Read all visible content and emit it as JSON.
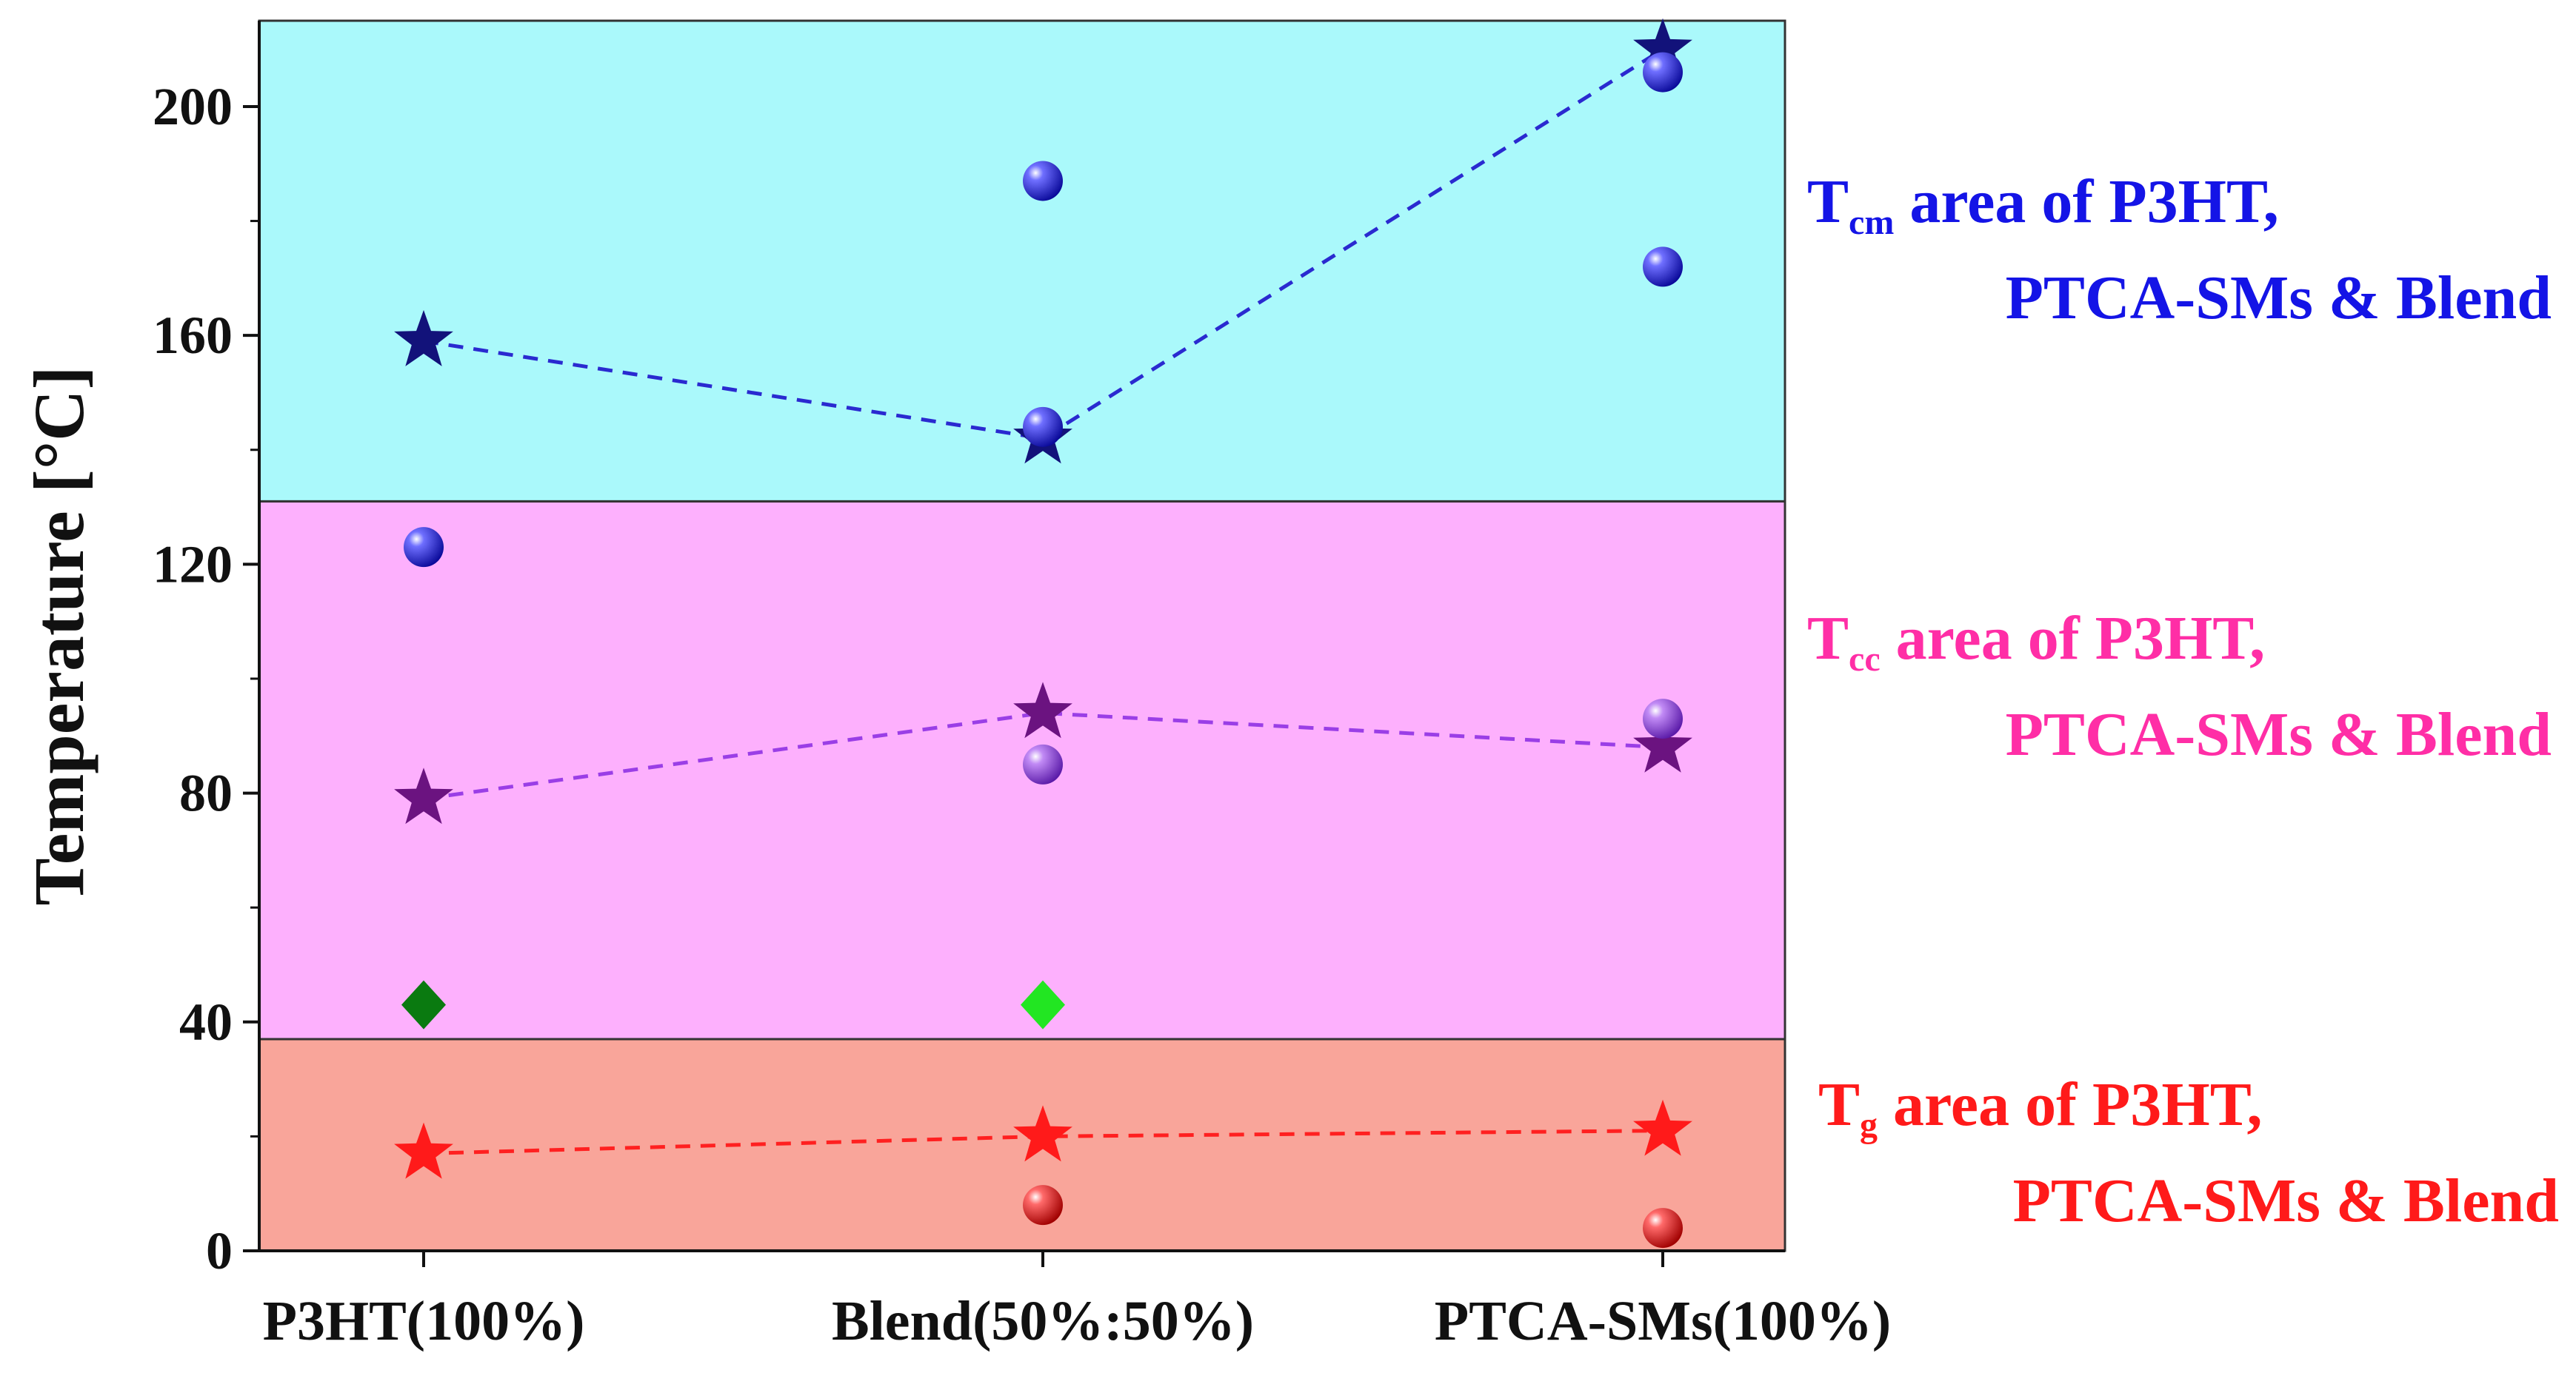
{
  "chart_data": {
    "type": "scatter",
    "title": "",
    "xlabel": "",
    "ylabel": "Temperature [°C]",
    "categories": [
      "P3HT(100%)",
      "Blend(50%:50%)",
      "PTCA-SMs(100%)"
    ],
    "ylim": [
      0,
      215
    ],
    "yticks": [
      0,
      40,
      80,
      120,
      160,
      200
    ],
    "regions": [
      {
        "name": "Tg",
        "from": 0,
        "to": 37,
        "color": "#f9a59a",
        "label_main": "T",
        "label_sub": "g",
        "label_rest": " area of P3HT,",
        "label_line2": "PTCA-SMs & Blend",
        "text_color": "#ff1a1a"
      },
      {
        "name": "Tcc",
        "from": 37,
        "to": 131,
        "color": "#fdb0fd",
        "label_main": "T",
        "label_sub": "cc",
        "label_rest": " area of P3HT,",
        "label_line2": "PTCA-SMs & Blend",
        "text_color": "#ff2ea6"
      },
      {
        "name": "Tcm",
        "from": 131,
        "to": 215,
        "color": "#aaf9fb",
        "label_main": "T",
        "label_sub": "cm",
        "label_rest": " area of P3HT,",
        "label_line2": "PTCA-SMs & Blend",
        "text_color": "#1414e6"
      }
    ],
    "series": [
      {
        "name": "Tcm star",
        "marker": "star",
        "color": "#12127a",
        "line": true,
        "line_color": "#2a2ad0",
        "values": [
          159,
          142,
          210
        ]
      },
      {
        "name": "Tcc star",
        "marker": "star",
        "color": "#6b1380",
        "line": true,
        "line_color": "#9a3ee6",
        "values": [
          79,
          94,
          88
        ]
      },
      {
        "name": "Tg star",
        "marker": "star",
        "color": "#ff1a1a",
        "line": true,
        "line_color": "#ff2020",
        "values": [
          17,
          20,
          21
        ]
      },
      {
        "name": "blue spheres",
        "marker": "sphere",
        "color": "#1a1ae0",
        "line": false,
        "points": [
          {
            "x": 0,
            "y": 123
          },
          {
            "x": 1,
            "y": 187
          },
          {
            "x": 1,
            "y": 144
          },
          {
            "x": 2,
            "y": 206
          },
          {
            "x": 2,
            "y": 172
          }
        ]
      },
      {
        "name": "purple spheres",
        "marker": "sphere",
        "color": "#8a2be2",
        "line": false,
        "points": [
          {
            "x": 1,
            "y": 85
          },
          {
            "x": 2,
            "y": 93
          }
        ]
      },
      {
        "name": "red spheres",
        "marker": "sphere",
        "color": "#e81010",
        "line": false,
        "points": [
          {
            "x": 1,
            "y": 8
          },
          {
            "x": 2,
            "y": 4
          }
        ]
      },
      {
        "name": "green diamonds",
        "marker": "diamond",
        "line": false,
        "points": [
          {
            "x": 0,
            "y": 43,
            "color": "#0a7a10"
          },
          {
            "x": 1,
            "y": 43,
            "color": "#22e622"
          }
        ]
      }
    ]
  }
}
